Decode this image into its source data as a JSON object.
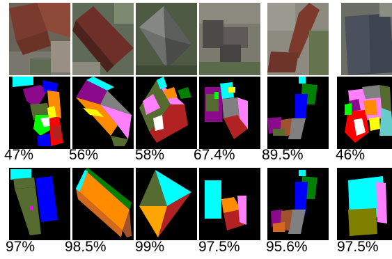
{
  "figure": {
    "row1_accuracy": [
      "47%",
      "56%",
      "58%",
      "67.4%",
      "89.5%",
      "46%"
    ],
    "row2_accuracy": [
      "97%",
      "98.5%",
      "99%",
      "97.5%",
      "95.6%",
      "97.5%"
    ],
    "segment_colors": [
      "#00ffff",
      "#8b0a8b",
      "#0000ff",
      "#008000",
      "#ff8c00",
      "#ff80ff",
      "#808080",
      "#556b2f",
      "#a0522d",
      "#b22222",
      "#ff0000",
      "#ffffff",
      "#00ff00",
      "#ffff00"
    ]
  }
}
